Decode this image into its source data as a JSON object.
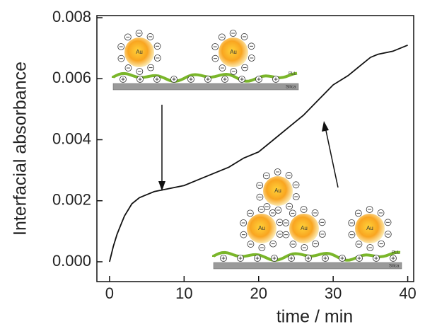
{
  "chart_data": {
    "type": "line",
    "y_label": "Interfacial absorbance",
    "x_label": "time / min",
    "x": [
      0,
      0.5,
      1,
      1.5,
      2,
      3,
      4,
      5,
      6,
      7,
      8,
      10,
      12,
      14,
      16,
      18,
      20,
      22,
      24,
      26,
      28,
      30,
      32,
      34,
      35,
      36,
      38,
      40
    ],
    "series": [
      {
        "name": null,
        "color": "#111111",
        "values": [
          0,
          0.0005,
          0.0009,
          0.0012,
          0.0015,
          0.0019,
          0.0021,
          0.0022,
          0.0023,
          0.00235,
          0.0024,
          0.0025,
          0.0027,
          0.0029,
          0.0031,
          0.0034,
          0.0036,
          0.004,
          0.0044,
          0.0048,
          0.0053,
          0.0058,
          0.0061,
          0.0065,
          0.0067,
          0.0068,
          0.0069,
          0.0071
        ]
      }
    ],
    "xlim": [
      -1.7,
      40.8
    ],
    "ylim": [
      -0.00065,
      0.00807
    ],
    "xticks": [
      0,
      10,
      20,
      30,
      40
    ],
    "yticks": [
      {
        "value": 0,
        "label": "0.000"
      },
      0.002,
      0.004,
      0.006,
      0.008
    ],
    "inset_labels": {
      "particle": "Au",
      "polymer": "PLL",
      "substrate": "Silica"
    }
  }
}
